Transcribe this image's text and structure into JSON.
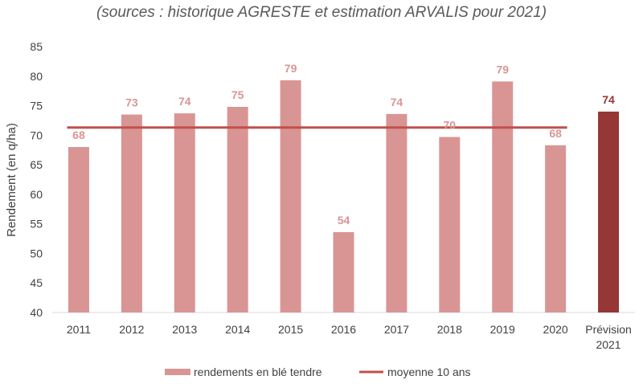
{
  "chart_data": {
    "type": "bar",
    "title": "(sources : historique AGRESTE et estimation ARVALIS pour 2021)",
    "ylabel": "Rendement (en q/ha)",
    "xlabel": "",
    "ylim": [
      40,
      85
    ],
    "yticks": [
      "40",
      "45",
      "50",
      "55",
      "60",
      "65",
      "70",
      "75",
      "80",
      "85"
    ],
    "categories": [
      {
        "line1": "2011",
        "line2": ""
      },
      {
        "line1": "2012",
        "line2": ""
      },
      {
        "line1": "2013",
        "line2": ""
      },
      {
        "line1": "2014",
        "line2": ""
      },
      {
        "line1": "2015",
        "line2": ""
      },
      {
        "line1": "2016",
        "line2": ""
      },
      {
        "line1": "2017",
        "line2": ""
      },
      {
        "line1": "2018",
        "line2": ""
      },
      {
        "line1": "2019",
        "line2": ""
      },
      {
        "line1": "2020",
        "line2": ""
      },
      {
        "line1": "Prévision",
        "line2": "2021"
      }
    ],
    "values": [
      68,
      73.5,
      73.7,
      74.8,
      79.3,
      53.6,
      73.6,
      69.7,
      79.1,
      68.3,
      74
    ],
    "data_labels": [
      "68",
      "73",
      "74",
      "75",
      "79",
      "54",
      "74",
      "70",
      "79",
      "68",
      "74"
    ],
    "highlight_index": 10,
    "average": 71.3,
    "grid": false,
    "legend_position": "bottom",
    "series": [
      {
        "name": "rendements en blé tendre",
        "kind": "bar"
      },
      {
        "name": "moyenne 10 ans",
        "kind": "line"
      }
    ],
    "colors": {
      "bar": "#D99594",
      "bar_highlight": "#953735",
      "label": "#D99594",
      "label_highlight": "#953735",
      "average_line": "#C0504D",
      "axis": "#D9D9D9"
    }
  }
}
